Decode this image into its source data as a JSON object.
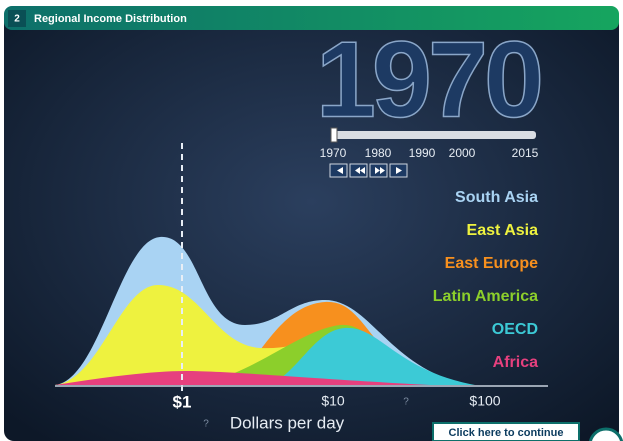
{
  "header": {
    "number": "2",
    "title": "Regional Income Distribution"
  },
  "year": "1970",
  "timeline": {
    "labels": [
      "1970",
      "1980",
      "1990",
      "2000",
      "2015"
    ]
  },
  "legend": [
    {
      "name": "South Asia",
      "color": "#a9d3f3"
    },
    {
      "name": "East Asia",
      "color": "#eef23f"
    },
    {
      "name": "East Europe",
      "color": "#f7901e"
    },
    {
      "name": "Latin America",
      "color": "#8ccf2b"
    },
    {
      "name": "OECD",
      "color": "#3ccad6"
    },
    {
      "name": "Africa",
      "color": "#e6407e"
    }
  ],
  "x_axis": {
    "ticks": [
      "$1",
      "$10",
      "$100"
    ],
    "label": "Dollars per day",
    "help": [
      "?",
      "?"
    ]
  },
  "button": "Click here to continue"
}
